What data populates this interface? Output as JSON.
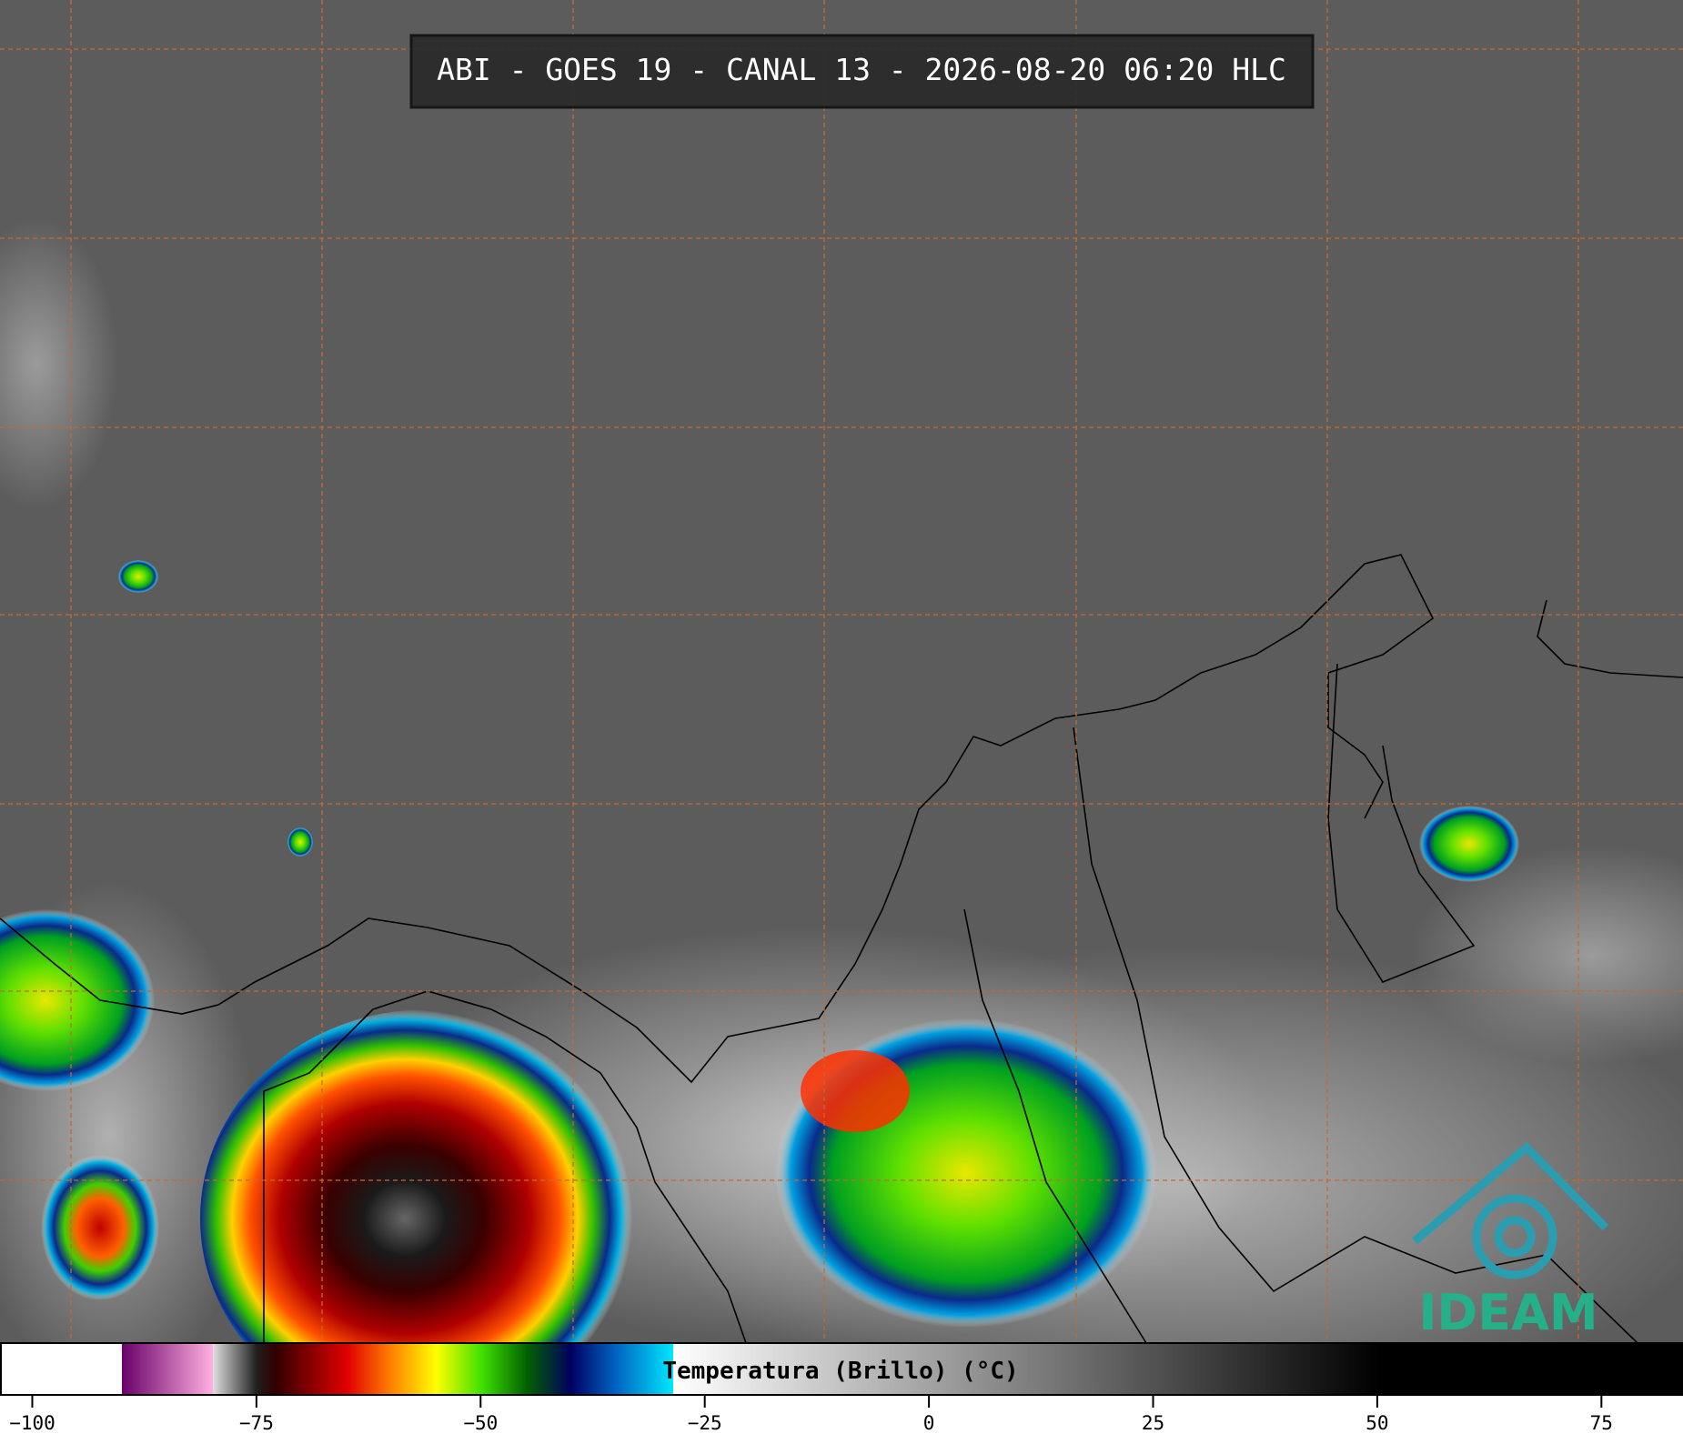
{
  "title": "ABI - GOES 19 - CANAL 13 - 2026-08-20 06:20 HLC",
  "logo": "IDEAM",
  "colorbar": {
    "label": "Temperatura (Brillo) (°C)",
    "xlim": [
      -103.6,
      84.1
    ],
    "ticks": [
      {
        "value": -100,
        "label": "−100"
      },
      {
        "value": -75,
        "label": "−75"
      },
      {
        "value": -50,
        "label": "−50"
      },
      {
        "value": -25,
        "label": "−25"
      },
      0,
      25,
      50,
      75
    ]
  }
}
